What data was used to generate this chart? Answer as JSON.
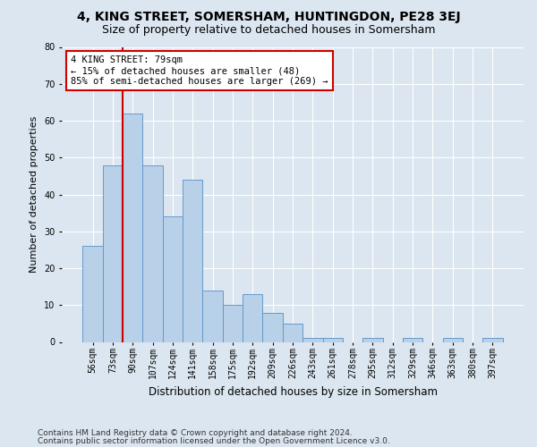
{
  "title": "4, KING STREET, SOMERSHAM, HUNTINGDON, PE28 3EJ",
  "subtitle": "Size of property relative to detached houses in Somersham",
  "xlabel": "Distribution of detached houses by size in Somersham",
  "ylabel": "Number of detached properties",
  "categories": [
    "56sqm",
    "73sqm",
    "90sqm",
    "107sqm",
    "124sqm",
    "141sqm",
    "158sqm",
    "175sqm",
    "192sqm",
    "209sqm",
    "226sqm",
    "243sqm",
    "261sqm",
    "278sqm",
    "295sqm",
    "312sqm",
    "329sqm",
    "346sqm",
    "363sqm",
    "380sqm",
    "397sqm"
  ],
  "values": [
    26,
    48,
    62,
    48,
    34,
    44,
    14,
    10,
    13,
    8,
    5,
    1,
    1,
    0,
    1,
    0,
    1,
    0,
    1,
    0,
    1
  ],
  "bar_color": "#b8d0e8",
  "bar_edge_color": "#6699cc",
  "annotation_box_text": "4 KING STREET: 79sqm\n← 15% of detached houses are smaller (48)\n85% of semi-detached houses are larger (269) →",
  "annotation_box_color": "white",
  "annotation_box_edge_color": "#cc0000",
  "vline_color": "#cc0000",
  "vline_x_bin": 1.5,
  "ylim": [
    0,
    80
  ],
  "yticks": [
    0,
    10,
    20,
    30,
    40,
    50,
    60,
    70,
    80
  ],
  "footer1": "Contains HM Land Registry data © Crown copyright and database right 2024.",
  "footer2": "Contains public sector information licensed under the Open Government Licence v3.0.",
  "bg_color": "#dce6f0",
  "grid_color": "#ffffff",
  "title_fontsize": 10,
  "subtitle_fontsize": 9,
  "ylabel_fontsize": 8,
  "xlabel_fontsize": 8.5,
  "tick_fontsize": 7,
  "annot_fontsize": 7.5,
  "footer_fontsize": 6.5
}
